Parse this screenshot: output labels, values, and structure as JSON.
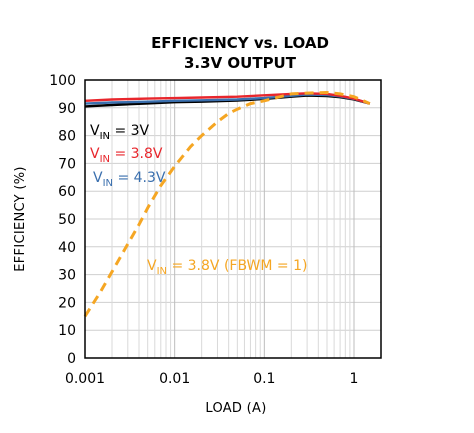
{
  "chart_data": {
    "type": "line",
    "title": [
      "EFFICIENCY vs. LOAD",
      "3.3V OUTPUT"
    ],
    "xlabel": "LOAD (A)",
    "ylabel": "EFFICIENCY (%)",
    "xscale": "log",
    "xlim": [
      0.001,
      2
    ],
    "ylim": [
      0,
      100
    ],
    "grid": true,
    "x_ticks": [
      0.001,
      0.01,
      0.1,
      1
    ],
    "x_tick_labels": [
      "0.001",
      "0.01",
      "0.1",
      "1"
    ],
    "y_ticks": [
      0,
      10,
      20,
      30,
      40,
      50,
      60,
      70,
      80,
      90,
      100
    ],
    "y_tick_labels": [
      "0",
      "10",
      "20",
      "30",
      "40",
      "50",
      "60",
      "70",
      "80",
      "90",
      "100"
    ],
    "series": [
      {
        "name": "VIN = 3.8V (FBWM = 1)",
        "label_main": "V",
        "label_sub": "IN",
        "label_rest": " = 3.8V (FBWM = 1)",
        "color": "#f5a623",
        "dash": true,
        "x": [
          0.001,
          0.0015,
          0.002,
          0.003,
          0.004,
          0.005,
          0.007,
          0.01,
          0.015,
          0.02,
          0.03,
          0.04,
          0.05,
          0.07,
          0.1,
          0.15,
          0.2,
          0.3,
          0.5,
          0.7,
          1.0,
          1.5
        ],
        "y": [
          15,
          24,
          31,
          41,
          48,
          54,
          62,
          69,
          76,
          80,
          85,
          88,
          89.5,
          91.5,
          92.5,
          94,
          95,
          95.3,
          95.5,
          95,
          94,
          91.5
        ]
      },
      {
        "name": "VIN = 3V",
        "label_main": "V",
        "label_sub": "IN",
        "label_rest": " = 3V",
        "color": "#000000",
        "dash": false,
        "x": [
          0.001,
          0.002,
          0.005,
          0.01,
          0.02,
          0.05,
          0.1,
          0.2,
          0.3,
          0.5,
          0.7,
          1.0,
          1.5
        ],
        "y": [
          90.5,
          91,
          91.6,
          92,
          92.2,
          92.6,
          93.2,
          94,
          94.4,
          94.2,
          93.8,
          93,
          91.5
        ]
      },
      {
        "name": "VIN = 3.8V",
        "label_main": "V",
        "label_sub": "IN",
        "label_rest": " = 3.8V",
        "color": "#e8262c",
        "dash": false,
        "x": [
          0.001,
          0.002,
          0.005,
          0.01,
          0.02,
          0.05,
          0.1,
          0.2,
          0.3,
          0.5,
          0.7,
          1.0,
          1.5
        ],
        "y": [
          92.5,
          93,
          93.3,
          93.5,
          93.7,
          94,
          94.5,
          95,
          95.2,
          95,
          94.3,
          93.3,
          91.5
        ]
      },
      {
        "name": "VIN = 4.3V",
        "label_main": "V",
        "label_sub": "IN",
        "label_rest": " = 4.3V",
        "color": "#3a6fae",
        "dash": false,
        "x": [
          0.001,
          0.002,
          0.005,
          0.01,
          0.02,
          0.05,
          0.1,
          0.2,
          0.3,
          0.5,
          0.7,
          1.0,
          1.5
        ],
        "y": [
          91.5,
          91.9,
          92.2,
          92.5,
          92.7,
          93,
          93.5,
          94.3,
          94.8,
          94.6,
          94.1,
          93.2,
          91.5
        ]
      }
    ]
  }
}
